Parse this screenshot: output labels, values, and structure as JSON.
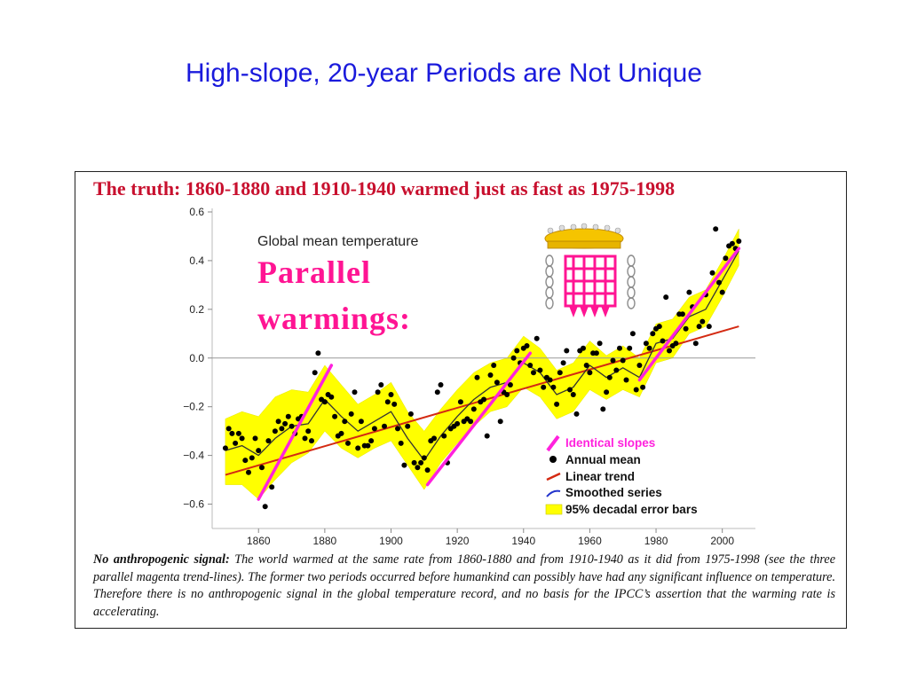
{
  "slide": {
    "title": "High-slope, 20-year Periods are Not Unique"
  },
  "figure": {
    "headline": "The truth: 1860-1880 and 1910-1940 warmed just as fast as 1975-1998",
    "subtitle": "Global mean temperature",
    "stamp_line1": "Parallel",
    "stamp_line2": "warmings:",
    "caption_lead": "No anthropogenic signal:",
    "caption_body": "The world warmed at the same rate from 1860-1880 and from 1910-1940 as it did from 1975-1998 (see the three parallel magenta trend-lines). The former two periods occurred before humankind can possibly have had any significant influence on temperature. Therefore there is no anthropogenic signal in the global temperature record, and no basis for the IPCC’s assertion that the warming rate is accelerating."
  },
  "colors": {
    "title_blue": "#1a1adc",
    "headline_red": "#c8102e",
    "band_yellow": "#ffff00",
    "trend_red": "#d42a12",
    "slope_magenta": "#ff22dd",
    "smooth_line": "#333333",
    "stamp_pink": "#ff1493"
  },
  "chart_data": {
    "type": "scatter",
    "title": "Global mean temperature",
    "xlabel": "",
    "ylabel": "",
    "xlim": [
      1846,
      2010
    ],
    "ylim": [
      -0.7,
      0.6
    ],
    "xticks": [
      1860,
      1880,
      1900,
      1920,
      1940,
      1960,
      1980,
      2000
    ],
    "yticks": [
      0.6,
      0.4,
      0.2,
      0.0,
      -0.2,
      -0.4,
      -0.6
    ],
    "ytick_labels": [
      "0.6",
      "0.4",
      "0.2",
      "0.0",
      "−0.2",
      "−0.4",
      "−0.6"
    ],
    "legend_position": "bottom-right",
    "legend": [
      {
        "key": "slopes",
        "label": "Identical slopes"
      },
      {
        "key": "annual",
        "label": "Annual mean"
      },
      {
        "key": "linear",
        "label": "Linear trend"
      },
      {
        "key": "smooth",
        "label": "Smoothed series"
      },
      {
        "key": "band",
        "label": "95% decadal error bars"
      }
    ],
    "annual_mean": {
      "x": [
        1850,
        1851,
        1852,
        1853,
        1854,
        1855,
        1856,
        1857,
        1858,
        1859,
        1860,
        1861,
        1862,
        1863,
        1864,
        1865,
        1866,
        1867,
        1868,
        1869,
        1870,
        1871,
        1872,
        1873,
        1874,
        1875,
        1876,
        1877,
        1878,
        1879,
        1880,
        1881,
        1882,
        1883,
        1884,
        1885,
        1886,
        1887,
        1888,
        1889,
        1890,
        1891,
        1892,
        1893,
        1894,
        1895,
        1896,
        1897,
        1898,
        1899,
        1900,
        1901,
        1902,
        1903,
        1904,
        1905,
        1906,
        1907,
        1908,
        1909,
        1910,
        1911,
        1912,
        1913,
        1914,
        1915,
        1916,
        1917,
        1918,
        1919,
        1920,
        1921,
        1922,
        1923,
        1924,
        1925,
        1926,
        1927,
        1928,
        1929,
        1930,
        1931,
        1932,
        1933,
        1934,
        1935,
        1936,
        1937,
        1938,
        1939,
        1940,
        1941,
        1942,
        1943,
        1944,
        1945,
        1946,
        1947,
        1948,
        1949,
        1950,
        1951,
        1952,
        1953,
        1954,
        1955,
        1956,
        1957,
        1958,
        1959,
        1960,
        1961,
        1962,
        1963,
        1964,
        1965,
        1966,
        1967,
        1968,
        1969,
        1970,
        1971,
        1972,
        1973,
        1974,
        1975,
        1976,
        1977,
        1978,
        1979,
        1980,
        1981,
        1982,
        1983,
        1984,
        1985,
        1986,
        1987,
        1988,
        1989,
        1990,
        1991,
        1992,
        1993,
        1994,
        1995,
        1996,
        1997,
        1998,
        1999,
        2000,
        2001,
        2002,
        2003,
        2004,
        2005
      ],
      "y": [
        -0.37,
        -0.29,
        -0.31,
        -0.35,
        -0.31,
        -0.33,
        -0.42,
        -0.47,
        -0.41,
        -0.33,
        -0.38,
        -0.45,
        -0.61,
        -0.34,
        -0.53,
        -0.3,
        -0.26,
        -0.29,
        -0.27,
        -0.24,
        -0.28,
        -0.31,
        -0.25,
        -0.24,
        -0.33,
        -0.3,
        -0.34,
        -0.06,
        0.02,
        -0.17,
        -0.18,
        -0.15,
        -0.16,
        -0.24,
        -0.32,
        -0.31,
        -0.26,
        -0.35,
        -0.23,
        -0.14,
        -0.37,
        -0.26,
        -0.36,
        -0.36,
        -0.34,
        -0.29,
        -0.14,
        -0.11,
        -0.28,
        -0.18,
        -0.15,
        -0.19,
        -0.29,
        -0.35,
        -0.44,
        -0.28,
        -0.23,
        -0.43,
        -0.45,
        -0.43,
        -0.41,
        -0.46,
        -0.34,
        -0.33,
        -0.14,
        -0.11,
        -0.32,
        -0.43,
        -0.29,
        -0.28,
        -0.27,
        -0.18,
        -0.26,
        -0.25,
        -0.26,
        -0.21,
        -0.08,
        -0.18,
        -0.17,
        -0.32,
        -0.07,
        -0.03,
        -0.1,
        -0.26,
        -0.14,
        -0.15,
        -0.11,
        0.0,
        0.03,
        -0.02,
        0.04,
        0.05,
        -0.03,
        -0.06,
        0.08,
        -0.05,
        -0.12,
        -0.08,
        -0.09,
        -0.12,
        -0.19,
        -0.06,
        -0.02,
        0.03,
        -0.13,
        -0.15,
        -0.23,
        0.03,
        0.04,
        -0.03,
        -0.06,
        0.02,
        0.02,
        0.06,
        -0.21,
        -0.14,
        -0.08,
        -0.01,
        -0.05,
        0.04,
        -0.01,
        -0.09,
        0.04,
        0.1,
        -0.13,
        -0.03,
        -0.12,
        0.06,
        0.04,
        0.1,
        0.12,
        0.13,
        0.07,
        0.25,
        0.03,
        0.05,
        0.06,
        0.18,
        0.18,
        0.12,
        0.27,
        0.21,
        0.06,
        0.13,
        0.15,
        0.26,
        0.13,
        0.35,
        0.53,
        0.31,
        0.27,
        0.41,
        0.46,
        0.47,
        0.45,
        0.48
      ]
    },
    "smoothed_series": {
      "x": [
        1850,
        1855,
        1860,
        1865,
        1870,
        1875,
        1880,
        1885,
        1890,
        1895,
        1900,
        1905,
        1910,
        1915,
        1920,
        1925,
        1930,
        1935,
        1940,
        1945,
        1950,
        1955,
        1960,
        1965,
        1970,
        1975,
        1980,
        1985,
        1990,
        1995,
        2000,
        2005
      ],
      "y": [
        -0.38,
        -0.36,
        -0.4,
        -0.33,
        -0.28,
        -0.27,
        -0.17,
        -0.24,
        -0.3,
        -0.26,
        -0.22,
        -0.33,
        -0.42,
        -0.32,
        -0.24,
        -0.17,
        -0.12,
        -0.1,
        -0.02,
        -0.06,
        -0.15,
        -0.12,
        -0.03,
        -0.08,
        -0.04,
        -0.08,
        0.06,
        0.08,
        0.17,
        0.2,
        0.32,
        0.44
      ]
    },
    "error_band": {
      "x": [
        1850,
        1855,
        1860,
        1865,
        1870,
        1875,
        1880,
        1885,
        1890,
        1895,
        1900,
        1905,
        1910,
        1915,
        1920,
        1925,
        1930,
        1935,
        1940,
        1945,
        1950,
        1955,
        1960,
        1965,
        1970,
        1975,
        1980,
        1985,
        1990,
        1995,
        2000,
        2005
      ],
      "lower": [
        -0.52,
        -0.52,
        -0.58,
        -0.5,
        -0.43,
        -0.39,
        -0.3,
        -0.37,
        -0.41,
        -0.37,
        -0.34,
        -0.44,
        -0.54,
        -0.43,
        -0.35,
        -0.28,
        -0.22,
        -0.2,
        -0.12,
        -0.16,
        -0.25,
        -0.22,
        -0.13,
        -0.17,
        -0.13,
        -0.16,
        -0.02,
        0.0,
        0.1,
        0.13,
        0.25,
        0.38
      ],
      "upper": [
        -0.25,
        -0.22,
        -0.24,
        -0.16,
        -0.13,
        -0.14,
        -0.03,
        -0.11,
        -0.19,
        -0.15,
        -0.1,
        -0.22,
        -0.3,
        -0.21,
        -0.13,
        -0.06,
        -0.02,
        0.0,
        0.09,
        0.04,
        -0.05,
        -0.02,
        0.07,
        0.01,
        0.05,
        0.0,
        0.14,
        0.16,
        0.25,
        0.28,
        0.4,
        0.53
      ]
    },
    "linear_trend": {
      "x": [
        1850,
        2005
      ],
      "y": [
        -0.48,
        0.13
      ]
    },
    "identical_slopes": [
      {
        "x": [
          1860,
          1882
        ],
        "y": [
          -0.58,
          -0.03
        ]
      },
      {
        "x": [
          1911,
          1942
        ],
        "y": [
          -0.52,
          0.02
        ]
      },
      {
        "x": [
          1975,
          2005
        ],
        "y": [
          -0.09,
          0.45
        ]
      }
    ]
  }
}
